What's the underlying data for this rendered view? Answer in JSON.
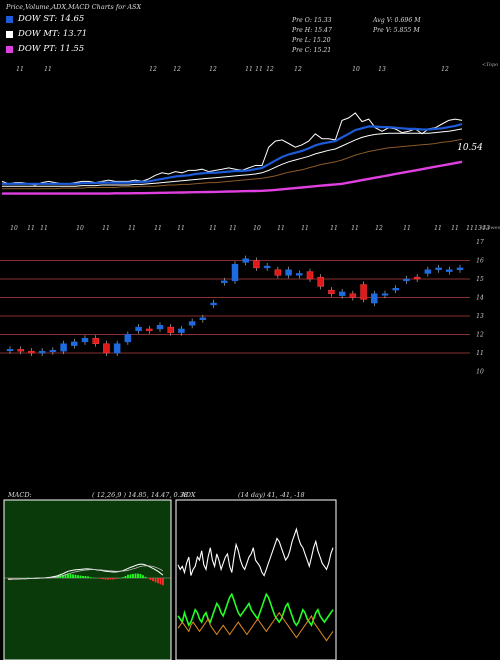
{
  "header": {
    "title": "Price,Volume,ADX,MACD Charts for ASX"
  },
  "legend": [
    {
      "label": "DOW ST: 14.65",
      "color": "#1e5bd8"
    },
    {
      "label": "DOW MT: 13.71",
      "color": "#ffffff"
    },
    {
      "label": "DOW PT: 11.55",
      "color": "#e040e0"
    }
  ],
  "stats": {
    "prev_open": "Pre   O: 15.33",
    "prev_high": "Pre   H: 15.47",
    "prev_low": "Pre   L: 15.20",
    "prev_close": "Pre   C: 15.21",
    "avg_volume": "Avg V: 0.696   M",
    "prev_volume": "Pre   V: 5.855  M"
  },
  "chart_data": [
    {
      "type": "line",
      "name": "Price with EMAs",
      "top_axis_labels": [
        "11",
        "11",
        "12",
        "12",
        "12",
        "11",
        "11",
        "12",
        "12",
        "10",
        "13",
        "12"
      ],
      "side_labels": {
        "top": "<Topo",
        "value": "10.54"
      },
      "series": [
        {
          "name": "Price",
          "color": "#ffffff",
          "values": [
            11.6,
            11.4,
            11.5,
            11.5,
            11.4,
            11.3,
            11.5,
            11.6,
            11.5,
            11.4,
            11.4,
            11.5,
            11.6,
            11.6,
            11.5,
            11.6,
            11.7,
            11.6,
            11.6,
            11.6,
            11.7,
            11.6,
            11.8,
            12.1,
            12.3,
            12.2,
            12.4,
            12.3,
            12.5,
            12.5,
            12.6,
            12.4,
            12.5,
            12.6,
            12.7,
            12.6,
            12.5,
            12.7,
            12.9,
            12.9,
            14.4,
            14.9,
            15.0,
            14.7,
            14.4,
            14.6,
            14.9,
            15.5,
            15.1,
            15.1,
            15.0,
            16.6,
            16.8,
            17.2,
            16.5,
            16.7,
            16.0,
            15.7,
            16.0,
            15.9,
            15.6,
            15.7,
            15.9,
            15.5,
            15.9,
            16.0,
            16.3,
            16.6,
            16.7,
            16.6
          ]
        },
        {
          "name": "EMA fast",
          "color": "#1e5bd8",
          "values": [
            11.4,
            11.4,
            11.4,
            11.4,
            11.4,
            11.4,
            11.4,
            11.4,
            11.4,
            11.4,
            11.4,
            11.4,
            11.45,
            11.45,
            11.45,
            11.5,
            11.5,
            11.5,
            11.5,
            11.5,
            11.55,
            11.55,
            11.6,
            11.7,
            11.8,
            11.9,
            12.0,
            12.05,
            12.1,
            12.2,
            12.25,
            12.3,
            12.3,
            12.35,
            12.4,
            12.45,
            12.45,
            12.5,
            12.6,
            12.7,
            13.0,
            13.3,
            13.6,
            13.8,
            13.95,
            14.1,
            14.3,
            14.55,
            14.7,
            14.8,
            14.9,
            15.2,
            15.5,
            15.8,
            15.95,
            16.1,
            16.1,
            16.05,
            16.05,
            16.0,
            15.95,
            15.9,
            15.9,
            15.85,
            15.85,
            15.9,
            15.95,
            16.05,
            16.15,
            16.3
          ]
        },
        {
          "name": "EMA mid",
          "color": "#ffffff",
          "values": [
            11.2,
            11.2,
            11.2,
            11.2,
            11.2,
            11.2,
            11.2,
            11.2,
            11.2,
            11.2,
            11.2,
            11.2,
            11.25,
            11.25,
            11.25,
            11.3,
            11.3,
            11.3,
            11.3,
            11.3,
            11.35,
            11.35,
            11.4,
            11.45,
            11.5,
            11.55,
            11.6,
            11.65,
            11.7,
            11.75,
            11.8,
            11.85,
            11.9,
            11.95,
            12.0,
            12.05,
            12.1,
            12.15,
            12.2,
            12.3,
            12.5,
            12.75,
            13.0,
            13.2,
            13.35,
            13.5,
            13.65,
            13.85,
            14.0,
            14.15,
            14.25,
            14.5,
            14.75,
            15.0,
            15.2,
            15.35,
            15.45,
            15.5,
            15.55,
            15.55,
            15.55,
            15.55,
            15.55,
            15.55,
            15.55,
            15.6,
            15.65,
            15.7,
            15.8,
            15.9
          ]
        },
        {
          "name": "EMA slow",
          "color": "#8a5a2a",
          "values": [
            11.0,
            11.0,
            11.0,
            11.0,
            11.0,
            11.0,
            11.0,
            11.0,
            11.0,
            11.05,
            11.05,
            11.05,
            11.05,
            11.1,
            11.1,
            11.1,
            11.1,
            11.1,
            11.15,
            11.15,
            11.15,
            11.2,
            11.2,
            11.2,
            11.25,
            11.3,
            11.3,
            11.35,
            11.35,
            11.4,
            11.45,
            11.5,
            11.5,
            11.55,
            11.6,
            11.65,
            11.7,
            11.75,
            11.8,
            11.85,
            11.95,
            12.05,
            12.2,
            12.35,
            12.45,
            12.55,
            12.7,
            12.85,
            13.0,
            13.1,
            13.2,
            13.35,
            13.55,
            13.75,
            13.9,
            14.05,
            14.15,
            14.25,
            14.35,
            14.4,
            14.45,
            14.5,
            14.55,
            14.6,
            14.65,
            14.7,
            14.8,
            14.85,
            14.95,
            15.05
          ]
        },
        {
          "name": "DOW PT",
          "color": "#e040e0",
          "values": [
            10.6,
            10.6,
            10.6,
            10.6,
            10.6,
            10.6,
            10.6,
            10.6,
            10.6,
            10.6,
            10.6,
            10.6,
            10.6,
            10.6,
            10.6,
            10.6,
            10.6,
            10.62,
            10.62,
            10.62,
            10.63,
            10.63,
            10.64,
            10.65,
            10.66,
            10.67,
            10.68,
            10.69,
            10.7,
            10.71,
            10.72,
            10.73,
            10.74,
            10.75,
            10.77,
            10.78,
            10.79,
            10.8,
            10.81,
            10.83,
            10.86,
            10.9,
            10.95,
            11.0,
            11.05,
            11.1,
            11.15,
            11.2,
            11.25,
            11.3,
            11.35,
            11.4,
            11.5,
            11.6,
            11.7,
            11.8,
            11.9,
            12.0,
            12.1,
            12.2,
            12.3,
            12.4,
            12.5,
            12.6,
            12.7,
            12.8,
            12.9,
            13.0,
            13.1,
            13.2
          ]
        }
      ]
    },
    {
      "type": "candlestick",
      "name": "Daily candles",
      "top_axis_labels": [
        "10",
        "11",
        "11",
        "10",
        "11",
        "11",
        "11",
        "11",
        "11",
        "11",
        "10",
        "11",
        "11",
        "11",
        "11",
        "12",
        "11",
        "11",
        "11",
        "11",
        "13",
        "13"
      ],
      "side_label": "<Lowes",
      "y_ticks": [
        17,
        16,
        15,
        14,
        13,
        12,
        11,
        10
      ],
      "candles": [
        {
          "o": 11.2,
          "c": 11.2
        },
        {
          "o": 11.2,
          "c": 11.1
        },
        {
          "o": 11.1,
          "c": 11.0
        },
        {
          "o": 11.0,
          "c": 11.1
        },
        {
          "o": 11.1,
          "c": 11.15
        },
        {
          "o": 11.1,
          "c": 11.5
        },
        {
          "o": 11.4,
          "c": 11.6
        },
        {
          "o": 11.6,
          "c": 11.8
        },
        {
          "o": 11.8,
          "c": 11.5
        },
        {
          "o": 11.5,
          "c": 11.0
        },
        {
          "o": 11.0,
          "c": 11.5
        },
        {
          "o": 11.6,
          "c": 12.0
        },
        {
          "o": 12.2,
          "c": 12.4
        },
        {
          "o": 12.3,
          "c": 12.2
        },
        {
          "o": 12.3,
          "c": 12.5
        },
        {
          "o": 12.4,
          "c": 12.1
        },
        {
          "o": 12.1,
          "c": 12.3
        },
        {
          "o": 12.5,
          "c": 12.7
        },
        {
          "o": 12.8,
          "c": 12.9
        },
        {
          "o": 13.6,
          "c": 13.7
        },
        {
          "o": 14.8,
          "c": 14.9
        },
        {
          "o": 14.9,
          "c": 15.8
        },
        {
          "o": 15.9,
          "c": 16.1
        },
        {
          "o": 16.0,
          "c": 15.6
        },
        {
          "o": 15.6,
          "c": 15.7
        },
        {
          "o": 15.5,
          "c": 15.2
        },
        {
          "o": 15.2,
          "c": 15.5
        },
        {
          "o": 15.2,
          "c": 15.3
        },
        {
          "o": 15.4,
          "c": 15.0
        },
        {
          "o": 15.1,
          "c": 14.6
        },
        {
          "o": 14.4,
          "c": 14.2
        },
        {
          "o": 14.1,
          "c": 14.3
        },
        {
          "o": 14.2,
          "c": 14.0
        },
        {
          "o": 14.7,
          "c": 13.9
        },
        {
          "o": 13.7,
          "c": 14.2
        },
        {
          "o": 14.2,
          "c": 14.2
        },
        {
          "o": 14.4,
          "c": 14.5
        },
        {
          "o": 14.9,
          "c": 15.0
        },
        {
          "o": 15.1,
          "c": 15.0
        },
        {
          "o": 15.3,
          "c": 15.5
        },
        {
          "o": 15.5,
          "c": 15.6
        },
        {
          "o": 15.4,
          "c": 15.5
        },
        {
          "o": 15.5,
          "c": 15.6
        }
      ]
    },
    {
      "type": "area",
      "name": "MACD",
      "label": "MACD:",
      "params": "( 12,26,9 ) 14.85, 14.47, 0.38",
      "macd": [
        -0.05,
        -0.05,
        -0.04,
        -0.04,
        -0.04,
        -0.03,
        -0.03,
        -0.03,
        -0.02,
        -0.02,
        -0.02,
        -0.01,
        -0.01,
        0.0,
        0.0,
        0.01,
        0.02,
        0.03,
        0.05,
        0.07,
        0.1,
        0.14,
        0.18,
        0.23,
        0.28,
        0.3,
        0.32,
        0.34,
        0.35,
        0.36,
        0.37,
        0.38,
        0.38,
        0.37,
        0.36,
        0.35,
        0.33,
        0.32,
        0.3,
        0.28,
        0.27,
        0.26,
        0.25,
        0.25,
        0.26,
        0.28,
        0.31,
        0.35,
        0.4,
        0.44,
        0.48,
        0.52,
        0.56,
        0.58,
        0.57,
        0.54,
        0.5,
        0.45,
        0.4,
        0.34,
        0.28,
        0.2,
        0.12
      ],
      "signal": [
        -0.03,
        -0.03,
        -0.03,
        -0.03,
        -0.03,
        -0.03,
        -0.03,
        -0.03,
        -0.03,
        -0.02,
        -0.02,
        -0.02,
        -0.02,
        -0.01,
        -0.01,
        0.0,
        0.0,
        0.01,
        0.02,
        0.03,
        0.05,
        0.07,
        0.1,
        0.13,
        0.17,
        0.2,
        0.23,
        0.26,
        0.28,
        0.3,
        0.32,
        0.33,
        0.34,
        0.35,
        0.35,
        0.35,
        0.34,
        0.34,
        0.33,
        0.32,
        0.31,
        0.3,
        0.29,
        0.28,
        0.28,
        0.28,
        0.29,
        0.3,
        0.32,
        0.35,
        0.38,
        0.41,
        0.45,
        0.48,
        0.5,
        0.51,
        0.51,
        0.5,
        0.48,
        0.45,
        0.41,
        0.36,
        0.3
      ]
    },
    {
      "type": "line",
      "name": "ADX",
      "label": "ADX",
      "params": "(14 day) 41, -41, -18",
      "adx": [
        55,
        52,
        54,
        50,
        56,
        60,
        48,
        52,
        54,
        60,
        58,
        64,
        55,
        52,
        60,
        66,
        58,
        54,
        62,
        58,
        52,
        56,
        60,
        62,
        54,
        50,
        60,
        68,
        64,
        58,
        54,
        52,
        56,
        60,
        62,
        66,
        58,
        56,
        54,
        50,
        48,
        52,
        56,
        60,
        64,
        68,
        72,
        70,
        66,
        62,
        58,
        60,
        64,
        70,
        74,
        78,
        72,
        68,
        66,
        62,
        58,
        54,
        60,
        66,
        70,
        64,
        60,
        56,
        54,
        52,
        56,
        62,
        66
      ],
      "plus_di": [
        22,
        20,
        18,
        24,
        20,
        16,
        18,
        22,
        26,
        24,
        20,
        18,
        22,
        24,
        20,
        18,
        22,
        26,
        30,
        28,
        24,
        22,
        26,
        30,
        34,
        36,
        32,
        28,
        24,
        22,
        24,
        26,
        28,
        30,
        26,
        24,
        22,
        20,
        24,
        28,
        32,
        36,
        34,
        30,
        26,
        22,
        20,
        18,
        20,
        24,
        28,
        30,
        26,
        22,
        18,
        16,
        18,
        22,
        26,
        24,
        20,
        18,
        16,
        20,
        24,
        26,
        22,
        20,
        18,
        20,
        22,
        24,
        26
      ],
      "minus_di": [
        14,
        16,
        18,
        16,
        14,
        12,
        16,
        18,
        16,
        14,
        12,
        14,
        16,
        18,
        20,
        16,
        14,
        12,
        10,
        12,
        14,
        16,
        14,
        12,
        10,
        12,
        14,
        16,
        18,
        16,
        14,
        12,
        10,
        12,
        14,
        16,
        18,
        20,
        18,
        16,
        14,
        12,
        14,
        16,
        18,
        20,
        22,
        24,
        22,
        20,
        18,
        16,
        14,
        12,
        10,
        8,
        10,
        12,
        14,
        16,
        18,
        20,
        22,
        18,
        16,
        14,
        12,
        10,
        8,
        6,
        8,
        10,
        12
      ]
    }
  ]
}
